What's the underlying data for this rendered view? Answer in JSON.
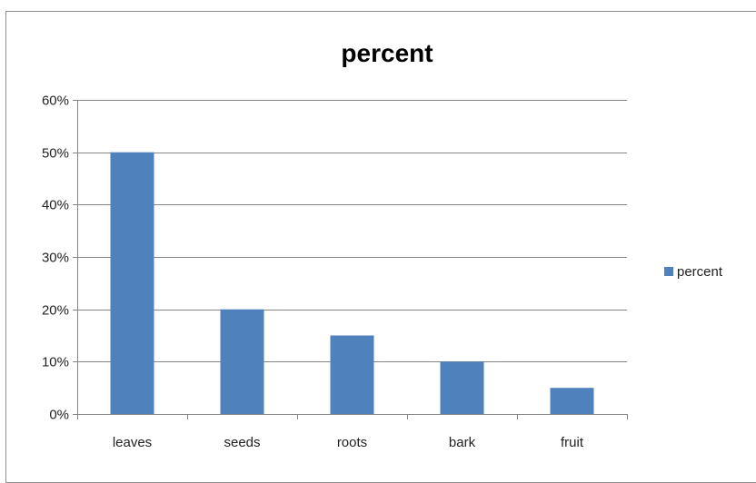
{
  "chart_data": {
    "type": "bar",
    "title": "percent",
    "categories": [
      "leaves",
      "seeds",
      "roots",
      "bark",
      "fruit"
    ],
    "series": [
      {
        "name": "percent",
        "values": [
          0.5,
          0.2,
          0.15,
          0.1,
          0.05
        ]
      }
    ],
    "ylim": [
      0,
      0.6
    ],
    "yticks": [
      0,
      0.1,
      0.2,
      0.3,
      0.4,
      0.5,
      0.6
    ],
    "ytick_labels": [
      "0%",
      "10%",
      "20%",
      "30%",
      "40%",
      "50%",
      "60%"
    ],
    "grid": true,
    "legend_position": "right",
    "bar_color": "#4f81bd",
    "grid_color": "#868686"
  }
}
